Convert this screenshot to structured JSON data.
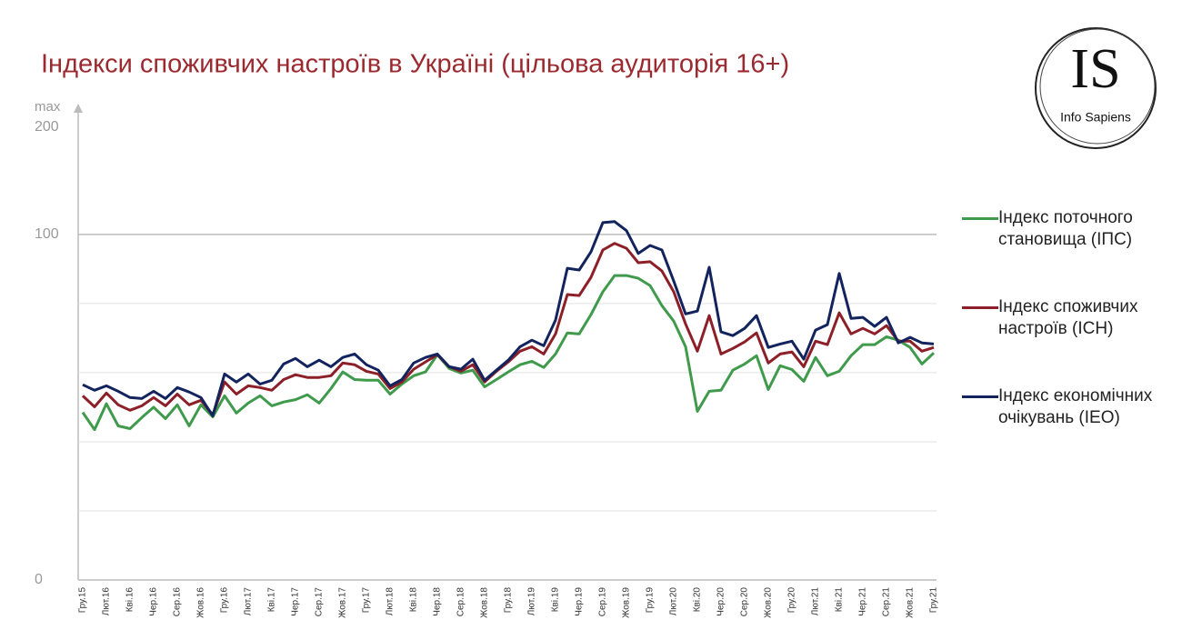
{
  "chart_data": {
    "type": "line",
    "title": "Індекси споживчих настроїв в Україні (цільова аудиторія 16+)",
    "y_axis_top": "max",
    "y_axis_max": "200",
    "categories": [
      "Гру.15",
      null,
      "Лют.16",
      null,
      "Кві.16",
      null,
      "Чер.16",
      null,
      "Сер.16",
      null,
      "Жов.16",
      null,
      "Гру.16",
      null,
      "Лют.17",
      null,
      "Кві.17",
      null,
      "Чер.17",
      null,
      "Сер.17",
      null,
      "Жов.17",
      null,
      "Гру.17",
      null,
      "Лют.18",
      null,
      "Кві.18",
      null,
      "Чер.18",
      null,
      "Сер.18",
      null,
      "Жов.18",
      null,
      "Гру.18",
      null,
      "Лют.19",
      null,
      "Кві.19",
      null,
      "Чер.19",
      null,
      "Сер.19",
      null,
      "Жов.19",
      null,
      "Гру.19",
      null,
      "Лют.20",
      null,
      "Кві.20",
      null,
      "Чер.20",
      null,
      "Сер.20",
      null,
      "Жов.20",
      null,
      "Гру.20",
      null,
      "Лют.21",
      null,
      "Кві.21",
      null,
      "Чер.21",
      null,
      "Сер.21",
      null,
      "Жов.21",
      null,
      "Гру.21"
    ],
    "series": [
      {
        "name": "Індекс поточного становища (ІПС)",
        "color": "#3f9a4c",
        "values": [
          48.5,
          43.5,
          51,
          44.6,
          43.8,
          47,
          50,
          46.7,
          50.7,
          44.6,
          50.7,
          47.2,
          53.3,
          48.3,
          51.2,
          53.3,
          50.4,
          51.5,
          52.2,
          53.6,
          51.2,
          55.4,
          60.2,
          58,
          57.8,
          57.8,
          53.8,
          56.7,
          59.1,
          60.2,
          65.2,
          61.2,
          59.9,
          60.7,
          55.9,
          58,
          60.2,
          62.3,
          63.3,
          61.5,
          65.4,
          71.5,
          71.2,
          76.8,
          83.4,
          88.1,
          88.1,
          87.3,
          85.2,
          79.4,
          74.9,
          67.5,
          48.8,
          54.6,
          54.9,
          60.7,
          62.5,
          64.9,
          55.1,
          62,
          60.9,
          57.5,
          64.4,
          59.1,
          60.4,
          64.9,
          68.1,
          68.1,
          70.4,
          69.4,
          67.3,
          62.5,
          65.7
        ]
      },
      {
        "name": "Індекс споживчих настроїв (ІСН)",
        "color": "#8c1f27",
        "values": [
          53.3,
          50.1,
          54.1,
          50.7,
          49.1,
          50.4,
          52.8,
          50.4,
          53.8,
          50.7,
          52,
          47.8,
          57.3,
          53.8,
          56.2,
          55.7,
          54.9,
          58,
          59.4,
          58.6,
          58.6,
          59.1,
          62.8,
          62.3,
          60.4,
          59.6,
          55.4,
          57.3,
          61,
          63.1,
          65.2,
          61.7,
          60.4,
          62.3,
          57.3,
          60.4,
          63.1,
          66.2,
          67.5,
          65.4,
          71.2,
          82.6,
          82.3,
          87.6,
          95.5,
          97.4,
          96,
          91.8,
          92.1,
          89.4,
          83.4,
          74.1,
          66.2,
          76.5,
          65.4,
          67,
          68.9,
          71.5,
          62.8,
          65.4,
          66,
          61.7,
          69.1,
          68.1,
          77.3,
          71.2,
          72.8,
          71.2,
          73.6,
          69.1,
          69.1,
          66.2,
          67.3
        ]
      },
      {
        "name": "Індекс економічних очікувань (ІЕО)",
        "color": "#13235e",
        "values": [
          56.5,
          54.9,
          56.2,
          54.6,
          52.8,
          52.5,
          54.6,
          52.5,
          55.7,
          54.4,
          52.8,
          47.5,
          59.6,
          57.3,
          59.6,
          56.7,
          57.8,
          62.5,
          64.1,
          61.7,
          63.6,
          61.7,
          64.4,
          65.4,
          62.3,
          60.7,
          56.2,
          58,
          62.8,
          64.4,
          65.4,
          61.7,
          61,
          63.9,
          57.8,
          60.7,
          63.6,
          67.5,
          69.4,
          67.8,
          75.2,
          90.2,
          89.7,
          95,
          103.4,
          103.7,
          101.1,
          94.5,
          96.8,
          95.5,
          86.5,
          77,
          77.8,
          90.5,
          71.8,
          70.7,
          72.8,
          76.5,
          67.3,
          68.3,
          69.1,
          63.9,
          72.3,
          73.9,
          88.7,
          75.7,
          76,
          73.4,
          76,
          68.6,
          70.2,
          68.6,
          68.3
        ]
      }
    ],
    "ylim": [
      0,
      131
    ],
    "yticks": [
      0,
      100
    ],
    "minor_gridlines": [
      20,
      40,
      60,
      80
    ],
    "grid": true
  },
  "logo": {
    "mark": "IS",
    "text": "Info Sapiens"
  }
}
